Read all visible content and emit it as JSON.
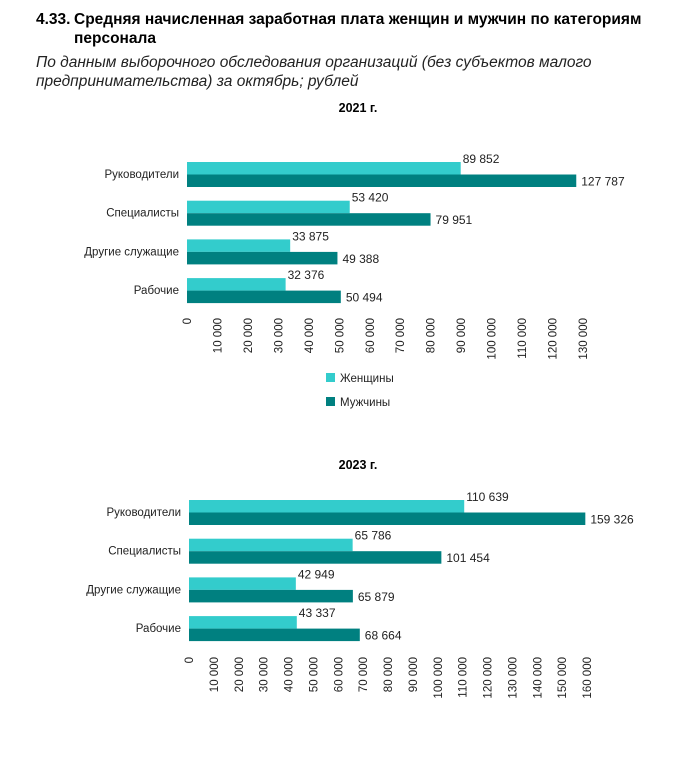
{
  "header": {
    "number": "4.33.",
    "title_line1": "Средняя начисленная заработная плата женщин и мужчин по категориям",
    "title_line2": "персонала",
    "subtitle": "По данным выборочного обследования организаций (без субъектов малого предпринимательства) за октябрь; рублей"
  },
  "colors": {
    "women": "#33CCCC",
    "men": "#008080"
  },
  "chart_data": [
    {
      "type": "bar",
      "orientation": "horizontal",
      "title": "2021 г.",
      "categories": [
        "Руководители",
        "Специалисты",
        "Другие служащие",
        "Рабочие"
      ],
      "series": [
        {
          "name": "Женщины",
          "values": [
            89852,
            53420,
            33875,
            32376
          ],
          "labels": [
            "89 852",
            "53 420",
            "33 875",
            "32 376"
          ]
        },
        {
          "name": "Мужчины",
          "values": [
            127787,
            79951,
            49388,
            50494
          ],
          "labels": [
            "127 787",
            "79 951",
            "49 388",
            "50 494"
          ]
        }
      ],
      "xlim": [
        0,
        130000
      ],
      "ticks": [
        "0",
        "10 000",
        "20 000",
        "30 000",
        "40 000",
        "50 000",
        "60 000",
        "70 000",
        "80 000",
        "90 000",
        "100 000",
        "110 000",
        "120 000",
        "130 000"
      ],
      "legend": "bottom",
      "grid": false
    },
    {
      "type": "bar",
      "orientation": "horizontal",
      "title": "2023 г.",
      "categories": [
        "Руководители",
        "Специалисты",
        "Другие служащие",
        "Рабочие"
      ],
      "series": [
        {
          "name": "Женщины",
          "values": [
            110639,
            65786,
            42949,
            43337
          ],
          "labels": [
            "110 639",
            "65 786",
            "42 949",
            "43 337"
          ]
        },
        {
          "name": "Мужчины",
          "values": [
            159326,
            101454,
            65879,
            68664
          ],
          "labels": [
            "159 326",
            "101 454",
            "65 879",
            "68 664"
          ]
        }
      ],
      "xlim": [
        0,
        160000
      ],
      "ticks": [
        "0",
        "10 000",
        "20 000",
        "30 000",
        "40 000",
        "50 000",
        "60 000",
        "70 000",
        "80 000",
        "90 000",
        "100 000",
        "110 000",
        "120 000",
        "130 000",
        "140 000",
        "150 000",
        "160 000"
      ],
      "legend": "none",
      "grid": false
    }
  ]
}
